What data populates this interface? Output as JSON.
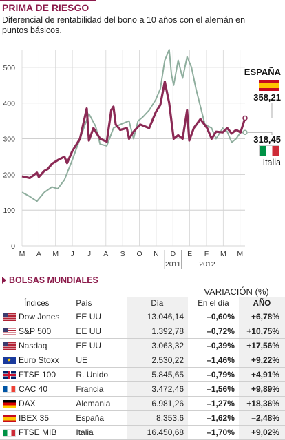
{
  "title": "PRIMA DE RIESGO",
  "subtitle": "Diferencial de rentabilidad del bono a 10 años con el alemán en puntos básicos.",
  "chart_data": {
    "type": "line",
    "title": "PRIMA DE RIESGO",
    "ylim": [
      0,
      550
    ],
    "yticks": [
      0,
      100,
      200,
      300,
      400,
      500
    ],
    "xlim": [
      0,
      1
    ],
    "xticks": [
      "M",
      "A",
      "M",
      "J",
      "J",
      "A",
      "S",
      "O",
      "N",
      "D",
      "E",
      "F",
      "M",
      "M"
    ],
    "year_labels": [
      "2011",
      "2012"
    ],
    "grid": true,
    "series": [
      {
        "name": "ESPAÑA",
        "color": "#8b2a55",
        "end_label": "358,21",
        "x": [
          0.0,
          0.035,
          0.067,
          0.075,
          0.1,
          0.115,
          0.134,
          0.16,
          0.19,
          0.202,
          0.225,
          0.26,
          0.29,
          0.3,
          0.32,
          0.35,
          0.38,
          0.4,
          0.41,
          0.42,
          0.44,
          0.47,
          0.48,
          0.5,
          0.53,
          0.57,
          0.6,
          0.62,
          0.64,
          0.66,
          0.68,
          0.7,
          0.72,
          0.74,
          0.75,
          0.77,
          0.8,
          0.83,
          0.85,
          0.87,
          0.9,
          0.92,
          0.94,
          0.96,
          0.98,
          1.0
        ],
        "y": [
          195,
          190,
          205,
          193,
          210,
          215,
          230,
          240,
          250,
          232,
          265,
          300,
          385,
          295,
          330,
          300,
          292,
          380,
          390,
          340,
          325,
          330,
          300,
          320,
          340,
          330,
          375,
          395,
          460,
          400,
          300,
          310,
          300,
          380,
          295,
          330,
          355,
          330,
          300,
          320,
          318,
          330,
          315,
          325,
          318,
          358
        ]
      },
      {
        "name": "Italia",
        "color": "#8fae9e",
        "end_label": "318,45",
        "x": [
          0.0,
          0.03,
          0.067,
          0.1,
          0.134,
          0.16,
          0.19,
          0.225,
          0.26,
          0.3,
          0.33,
          0.35,
          0.38,
          0.41,
          0.44,
          0.48,
          0.5,
          0.52,
          0.54,
          0.57,
          0.6,
          0.62,
          0.64,
          0.66,
          0.67,
          0.68,
          0.7,
          0.72,
          0.74,
          0.76,
          0.78,
          0.8,
          0.82,
          0.85,
          0.87,
          0.9,
          0.92,
          0.94,
          0.96,
          0.98,
          1.0
        ],
        "y": [
          150,
          140,
          125,
          150,
          165,
          160,
          185,
          240,
          300,
          370,
          335,
          285,
          280,
          330,
          340,
          350,
          300,
          350,
          360,
          380,
          410,
          440,
          520,
          550,
          480,
          450,
          520,
          470,
          530,
          500,
          440,
          390,
          340,
          330,
          300,
          330,
          320,
          290,
          300,
          318,
          318
        ]
      }
    ]
  },
  "legend": {
    "spain_label": "ESPAÑA",
    "spain_value": "358,21",
    "italy_value": "318,45",
    "italy_label": "Italia"
  },
  "section": {
    "title": "BOLSAS MUNDIALES",
    "variation_header": "VARIACIÓN (%)"
  },
  "table": {
    "headers": {
      "indices": "Índices",
      "pais": "País",
      "dia": "Día",
      "en_el_dia": "En el día",
      "ano": "AÑO"
    },
    "rows": [
      {
        "flag": "us",
        "index": "Dow Jones",
        "country": "EE UU",
        "day": "13.046,14",
        "change": "–0,60%",
        "year": "+6,78%"
      },
      {
        "flag": "us",
        "index": "S&P 500",
        "country": "EE UU",
        "day": "1.392,78",
        "change": "–0,72%",
        "year": "+10,75%"
      },
      {
        "flag": "us",
        "index": "Nasdaq",
        "country": "EE UU",
        "day": "3.063,32",
        "change": "–0,39%",
        "year": "+17,56%"
      },
      {
        "flag": "eu",
        "index": "Euro Stoxx",
        "country": "UE",
        "day": "2.530,22",
        "change": "–1,46%",
        "year": "+9,22%"
      },
      {
        "flag": "uk",
        "index": "FTSE 100",
        "country": "R. Unido",
        "day": "5.845,65",
        "change": "–0,79%",
        "year": "+4,91%"
      },
      {
        "flag": "fr",
        "index": "CAC 40",
        "country": "Francia",
        "day": "3.472,46",
        "change": "–1,56%",
        "year": "+9,89%"
      },
      {
        "flag": "de",
        "index": "DAX",
        "country": "Alemania",
        "day": "6.981,26",
        "change": "–1,27%",
        "year": "+18,36%"
      },
      {
        "flag": "es",
        "index": "IBEX 35",
        "country": "España",
        "day": "8.353,6",
        "change": "–1,62%",
        "year": "–2,48%"
      },
      {
        "flag": "it",
        "index": "FTSE MIB",
        "country": "Italia",
        "day": "16.450,68",
        "change": "–1,70%",
        "year": "+9,02%"
      }
    ]
  }
}
